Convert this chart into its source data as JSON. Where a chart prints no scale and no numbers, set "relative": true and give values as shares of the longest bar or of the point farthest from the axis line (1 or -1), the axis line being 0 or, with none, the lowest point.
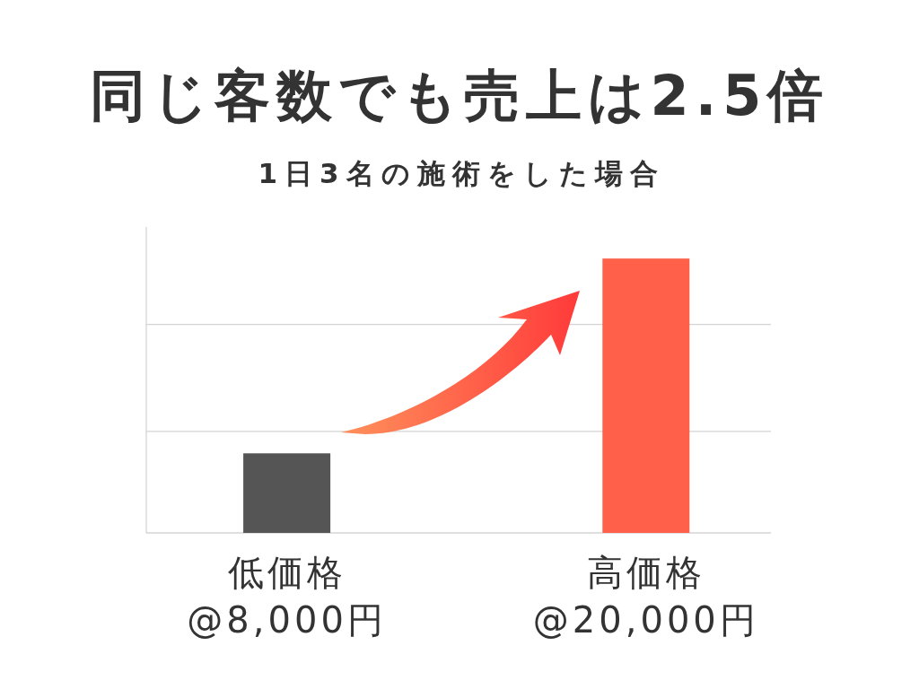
{
  "chart_data": {
    "type": "bar",
    "title": "同じ客数でも売上は2.5倍",
    "subtitle": "1日3名の施術をした場合",
    "categories": [
      "低価格\n@8,000円",
      "高価格\n@20,000円"
    ],
    "values": [
      0.29,
      1
    ],
    "colors": [
      "#555555",
      "#ff6049"
    ],
    "relative": true,
    "tick_labels": "x",
    "ref_lines": [
      {
        "axis": "y",
        "value": 0.37,
        "color": "#d4d4d4"
      },
      {
        "axis": "y",
        "value": 0.76,
        "color": "#d4d4d4"
      }
    ]
  }
}
